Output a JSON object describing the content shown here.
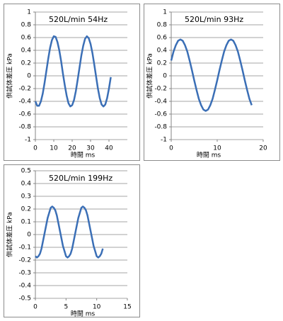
{
  "chart_data": [
    {
      "type": "line",
      "title": "520L/min 54Hz",
      "y_label": "供試体差圧 kPa",
      "x_label": "時間 ms",
      "color": "#3b6fb6",
      "grid": true,
      "xlim": [
        0,
        50
      ],
      "xticks": [
        0,
        10,
        20,
        30,
        40
      ],
      "ylim": [
        -1,
        1
      ],
      "yticks": [
        -1,
        -0.8,
        -0.6,
        -0.4,
        -0.2,
        0,
        0.2,
        0.4,
        0.6,
        0.8,
        1
      ],
      "x": [
        0,
        1,
        2,
        3,
        4,
        5,
        6,
        7,
        8,
        9,
        10,
        11,
        12,
        13,
        14,
        15,
        16,
        17,
        18,
        19,
        20,
        21,
        22,
        23,
        24,
        25,
        26,
        27,
        28,
        29,
        30,
        31,
        32,
        33,
        34,
        35,
        36,
        37,
        38,
        39,
        40,
        41
      ],
      "values": [
        -0.4,
        -0.47,
        -0.47,
        -0.4,
        -0.28,
        -0.11,
        0.08,
        0.27,
        0.44,
        0.56,
        0.62,
        0.61,
        0.53,
        0.4,
        0.23,
        0.03,
        -0.15,
        -0.31,
        -0.43,
        -0.48,
        -0.46,
        -0.38,
        -0.24,
        -0.06,
        0.13,
        0.32,
        0.47,
        0.58,
        0.62,
        0.59,
        0.5,
        0.36,
        0.18,
        -0.01,
        -0.2,
        -0.35,
        -0.45,
        -0.48,
        -0.45,
        -0.35,
        -0.2,
        -0.02
      ]
    },
    {
      "type": "line",
      "title": "520L/min 93Hz",
      "y_label": "供試体差圧 kPa",
      "x_label": "時間 ms",
      "color": "#3b6fb6",
      "grid": true,
      "xlim": [
        0,
        20
      ],
      "xticks": [
        0,
        10,
        20
      ],
      "ylim": [
        -1,
        1
      ],
      "yticks": [
        -1,
        -0.8,
        -0.6,
        -0.4,
        -0.2,
        0,
        0.2,
        0.4,
        0.6,
        0.8,
        1
      ],
      "x": [
        0,
        0.5,
        1,
        1.5,
        2,
        2.5,
        3,
        3.5,
        4,
        4.5,
        5,
        5.5,
        6,
        6.5,
        7,
        7.5,
        8,
        8.5,
        9,
        9.5,
        10,
        10.5,
        11,
        11.5,
        12,
        12.5,
        13,
        13.5,
        14,
        14.5,
        15,
        15.5,
        16,
        16.5,
        17,
        17.5
      ],
      "values": [
        0.24,
        0.38,
        0.48,
        0.55,
        0.57,
        0.55,
        0.48,
        0.38,
        0.24,
        0.09,
        -0.07,
        -0.22,
        -0.36,
        -0.46,
        -0.53,
        -0.55,
        -0.53,
        -0.46,
        -0.36,
        -0.22,
        -0.07,
        0.09,
        0.24,
        0.38,
        0.48,
        0.55,
        0.57,
        0.55,
        0.48,
        0.38,
        0.24,
        0.09,
        -0.07,
        -0.22,
        -0.36,
        -0.46
      ]
    },
    {
      "type": "line",
      "title": "520L/min 199Hz",
      "y_label": "供試体差圧 kPa",
      "x_label": "時間 ms",
      "color": "#3b6fb6",
      "grid": true,
      "xlim": [
        0,
        15
      ],
      "xticks": [
        0,
        5,
        10,
        15
      ],
      "ylim": [
        -0.5,
        0.5
      ],
      "yticks": [
        -0.5,
        -0.4,
        -0.3,
        -0.2,
        -0.1,
        0,
        0.1,
        0.2,
        0.3,
        0.4,
        0.5
      ],
      "x": [
        0,
        0.25,
        0.5,
        0.75,
        1,
        1.25,
        1.5,
        1.75,
        2,
        2.25,
        2.5,
        2.75,
        3,
        3.25,
        3.5,
        3.75,
        4,
        4.25,
        4.5,
        4.75,
        5,
        5.25,
        5.5,
        5.75,
        6,
        6.25,
        6.5,
        6.75,
        7,
        7.25,
        7.5,
        7.75,
        8,
        8.25,
        8.5,
        8.75,
        9,
        9.25,
        9.5,
        9.75,
        10,
        10.25,
        10.5,
        10.75,
        11
      ],
      "values": [
        -0.17,
        -0.18,
        -0.17,
        -0.15,
        -0.11,
        -0.05,
        0.01,
        0.07,
        0.13,
        0.17,
        0.21,
        0.22,
        0.21,
        0.19,
        0.15,
        0.09,
        0.03,
        -0.03,
        -0.09,
        -0.13,
        -0.17,
        -0.18,
        -0.17,
        -0.15,
        -0.11,
        -0.05,
        0.01,
        0.07,
        0.13,
        0.17,
        0.21,
        0.22,
        0.21,
        0.19,
        0.15,
        0.09,
        0.03,
        -0.03,
        -0.09,
        -0.13,
        -0.17,
        -0.18,
        -0.17,
        -0.15,
        -0.11
      ]
    }
  ]
}
